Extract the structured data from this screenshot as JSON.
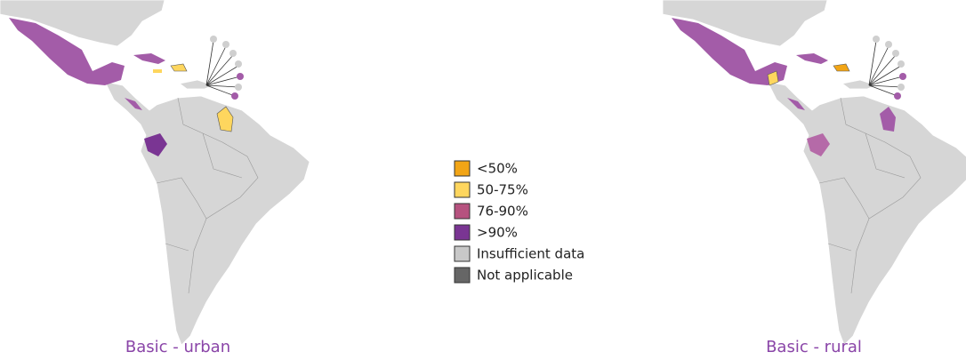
{
  "maps": [
    {
      "caption": "Basic - urban"
    },
    {
      "caption": "Basic - rural"
    }
  ],
  "legend": [
    {
      "label": "<50%",
      "color": "#f2a516"
    },
    {
      "label": "50-75%",
      "color": "#fed65e"
    },
    {
      "label": "76-90%",
      "color": "#b6527f"
    },
    {
      "label": ">90%",
      "color": "#7a3593"
    },
    {
      "label": "Insufficient data",
      "color": "#c8c8c8"
    },
    {
      "label": "Not applicable",
      "color": "#666666"
    }
  ]
}
